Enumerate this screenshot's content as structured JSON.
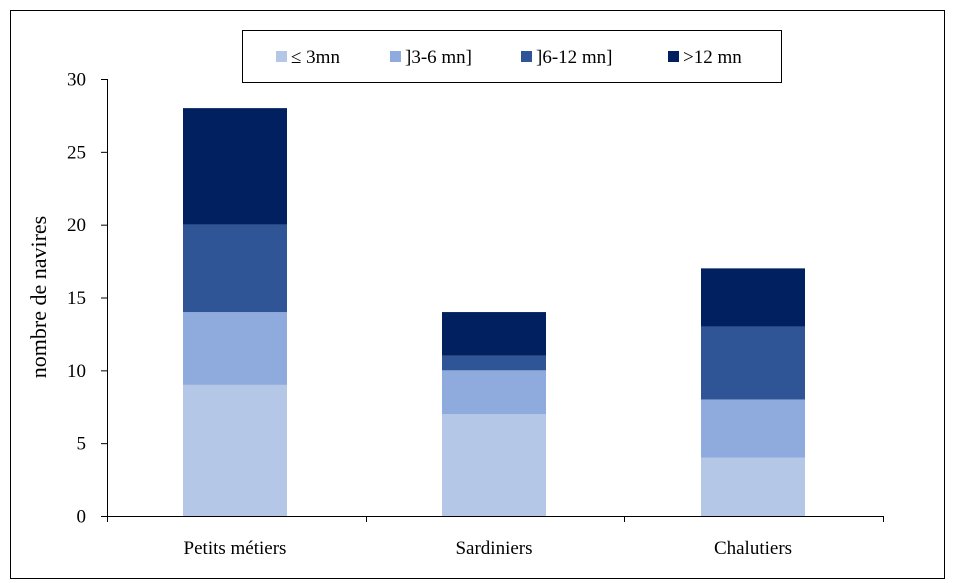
{
  "chart_data": {
    "type": "bar",
    "stacked": true,
    "title": "",
    "xlabel": "",
    "ylabel": "nombre de navires",
    "ylim": [
      0,
      30
    ],
    "yticks": [
      0,
      5,
      10,
      15,
      20,
      25,
      30
    ],
    "categories": [
      "Petits métiers",
      "Sardiniers",
      "Chalutiers"
    ],
    "series": [
      {
        "name": "≤ 3mn",
        "color": "#b4c7e7",
        "values": [
          9,
          7,
          4
        ]
      },
      {
        "name": "]3-6 mn]",
        "color": "#8faadc",
        "values": [
          5,
          3,
          4
        ]
      },
      {
        "name": "]6-12 mn]",
        "color": "#2f5597",
        "values": [
          6,
          1,
          5
        ]
      },
      {
        "name": ">12 mn",
        "color": "#002060",
        "values": [
          8,
          3,
          4
        ]
      }
    ],
    "legend_position": "top",
    "grid": false
  }
}
